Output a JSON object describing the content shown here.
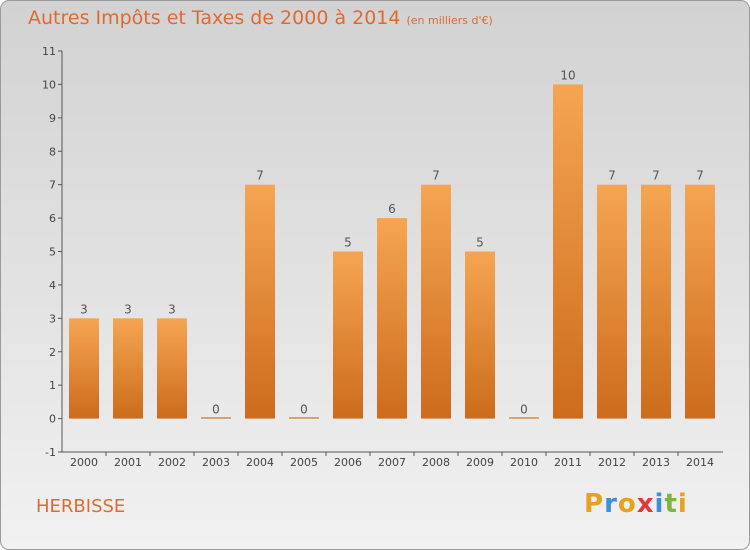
{
  "chart_data": {
    "type": "bar",
    "title": "Autres Impôts et Taxes de 2000 à 2014",
    "subtitle": "(en milliers d'€)",
    "categories": [
      "2000",
      "2001",
      "2002",
      "2003",
      "2004",
      "2005",
      "2006",
      "2007",
      "2008",
      "2009",
      "2010",
      "2011",
      "2012",
      "2013",
      "2014"
    ],
    "values": [
      3,
      3,
      3,
      0,
      7,
      0,
      5,
      6,
      7,
      5,
      0,
      10,
      7,
      7,
      7
    ],
    "data_labels": [
      "3",
      "3",
      "3",
      "0",
      "7",
      "0",
      "5",
      "6",
      "7",
      "5",
      "0",
      "10",
      "7",
      "7",
      "7"
    ],
    "y_ticks": [
      "-1",
      "0",
      "1",
      "2",
      "3",
      "4",
      "5",
      "6",
      "7",
      "8",
      "9",
      "10",
      "11"
    ],
    "ylim": [
      -1,
      11
    ],
    "grid": false,
    "bar_color": "#f0923a",
    "xlabel": "",
    "ylabel": ""
  },
  "place_name": "HERBISSE",
  "logo": {
    "text": "Proxiti",
    "letters": [
      {
        "char": "P",
        "color": "#e8a020"
      },
      {
        "char": "r",
        "color": "#3f8fd8"
      },
      {
        "char": "o",
        "color": "#e8a020"
      },
      {
        "char": "x",
        "color": "#e23a3a"
      },
      {
        "char": "i",
        "color": "#3f8fd8"
      },
      {
        "char": "t",
        "color": "#7ab640"
      },
      {
        "char": "i",
        "color": "#e8a020"
      }
    ]
  },
  "colors": {
    "title": "#dd6a30",
    "axis": "#555555",
    "bar_top": "#f5a552",
    "bar_bottom": "#cc6c1c"
  }
}
